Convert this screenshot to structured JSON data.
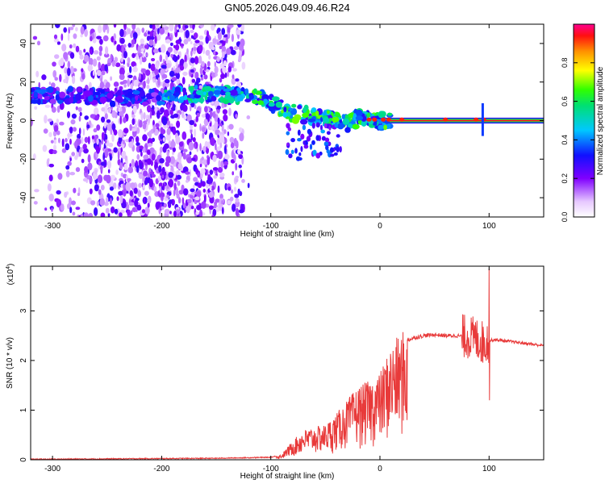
{
  "title": "GN05.2026.049.09.46.R24",
  "chart_data": [
    {
      "type": "heatmap",
      "name": "spectrogram",
      "xlabel": "Height of straight line (km)",
      "ylabel": "Frequency (Hz)",
      "xlim": [
        -320,
        150
      ],
      "ylim": [
        -50,
        50
      ],
      "xticks": [
        -300,
        -200,
        -100,
        0,
        100
      ],
      "xtick_labels": [
        "-300",
        "-200",
        "-100",
        "0",
        "100"
      ],
      "yticks": [
        -40,
        -20,
        0,
        20,
        40
      ],
      "ytick_labels": [
        "-40",
        "-20",
        "0",
        "20",
        "40"
      ],
      "ridge_x": [
        -320,
        -280,
        -240,
        -200,
        -180,
        -150,
        -130,
        -110,
        -100,
        -90,
        -80,
        -70,
        -60,
        -50,
        -40,
        -30,
        -20,
        -10,
        0,
        50,
        100,
        150
      ],
      "ridge_y": [
        13,
        13,
        12,
        12,
        14,
        14,
        13,
        12,
        9,
        6,
        4,
        3,
        2,
        1,
        0,
        -1,
        1,
        1,
        0,
        0,
        0,
        0
      ],
      "colorbar": {
        "label": "Normalized spectral amplitude",
        "range": [
          0,
          1
        ],
        "ticks": [
          0.0,
          0.2,
          0.4,
          0.6,
          0.8
        ],
        "tick_labels": [
          "0.0",
          "0.2",
          "0.4",
          "0.6",
          "0.8"
        ]
      }
    },
    {
      "type": "line",
      "name": "snr",
      "xlabel": "Height of straight line (km)",
      "ylabel": "SNR (10 * v/v)",
      "y_multiplier": "(x10",
      "y_multiplier_exp": "4",
      "y_multiplier_close": ")",
      "xlim": [
        -320,
        150
      ],
      "ylim": [
        0,
        3.9
      ],
      "xticks": [
        -300,
        -200,
        -100,
        0,
        100
      ],
      "xtick_labels": [
        "-300",
        "-200",
        "-100",
        "0",
        "100"
      ],
      "yticks": [
        0,
        1,
        2,
        3
      ],
      "ytick_labels": [
        "0",
        "1",
        "2",
        "3"
      ],
      "color": "#e83a3a",
      "envelope_x": [
        -320,
        -150,
        -100,
        -90,
        -80,
        -70,
        -60,
        -50,
        -40,
        -30,
        -20,
        -10,
        0,
        10,
        20,
        30,
        40,
        50,
        60,
        70,
        80,
        90,
        95,
        100,
        105,
        150
      ],
      "envelope_y": [
        0.01,
        0.03,
        0.05,
        0.1,
        0.35,
        0.55,
        0.6,
        0.65,
        0.85,
        1.1,
        1.35,
        1.45,
        1.6,
        2.1,
        2.35,
        2.45,
        2.5,
        2.52,
        2.5,
        2.5,
        2.48,
        2.42,
        2.35,
        2.4,
        2.42,
        2.3
      ],
      "spike_x": 100,
      "spike_y": 3.85,
      "spike_min_y": 1.2
    }
  ]
}
